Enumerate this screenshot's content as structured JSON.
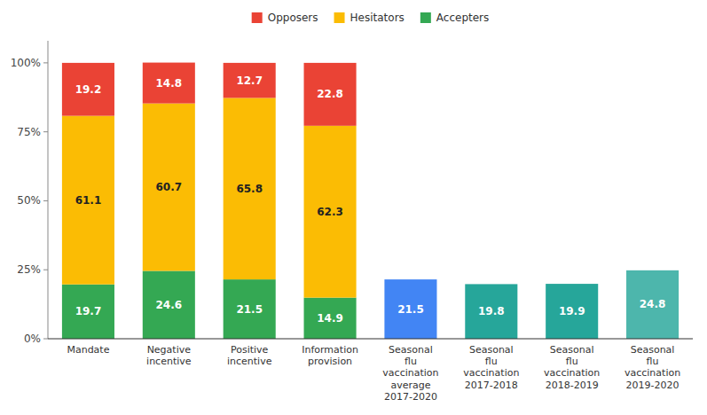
{
  "chart_data": {
    "type": "bar",
    "stacked": true,
    "data_labels": true,
    "grid": false,
    "legend": "top",
    "categories": [
      "Mandate",
      "Negative\nincentive",
      "Positive\nincentive",
      "Information\nprovision",
      "Seasonal\nflu\nvaccination\naverage\n2017-2020",
      "Seasonal\nflu\nvaccination\n2017-2018",
      "Seasonal\nflu\nvaccination\n2018-2019",
      "Seasonal\nflu\nvaccination\n2019-2020"
    ],
    "series": [
      {
        "name": "Accepters",
        "color": "#34A853",
        "values": [
          19.7,
          24.6,
          21.5,
          14.9,
          null,
          null,
          null,
          null
        ]
      },
      {
        "name": "Hesitators",
        "color": "#FBBC04",
        "values": [
          61.1,
          60.7,
          65.8,
          62.3,
          null,
          null,
          null,
          null
        ]
      },
      {
        "name": "Opposers",
        "color": "#EA4335",
        "values": [
          19.2,
          14.8,
          12.7,
          22.8,
          null,
          null,
          null,
          null
        ]
      },
      {
        "colors": [
          null,
          null,
          null,
          null,
          "#4285F4",
          "#26A69A",
          "#26A69A",
          "#4DB6AC"
        ],
        "values": [
          null,
          null,
          null,
          null,
          21.5,
          19.8,
          19.9,
          24.8
        ]
      }
    ],
    "ylim": [
      0,
      108
    ],
    "yticks": [
      {
        "value": 0,
        "label": "0%"
      },
      {
        "value": 25,
        "label": "25%"
      },
      {
        "value": 50,
        "label": "50%"
      },
      {
        "value": 75,
        "label": "75%"
      },
      {
        "value": 100,
        "label": "100%"
      }
    ]
  }
}
